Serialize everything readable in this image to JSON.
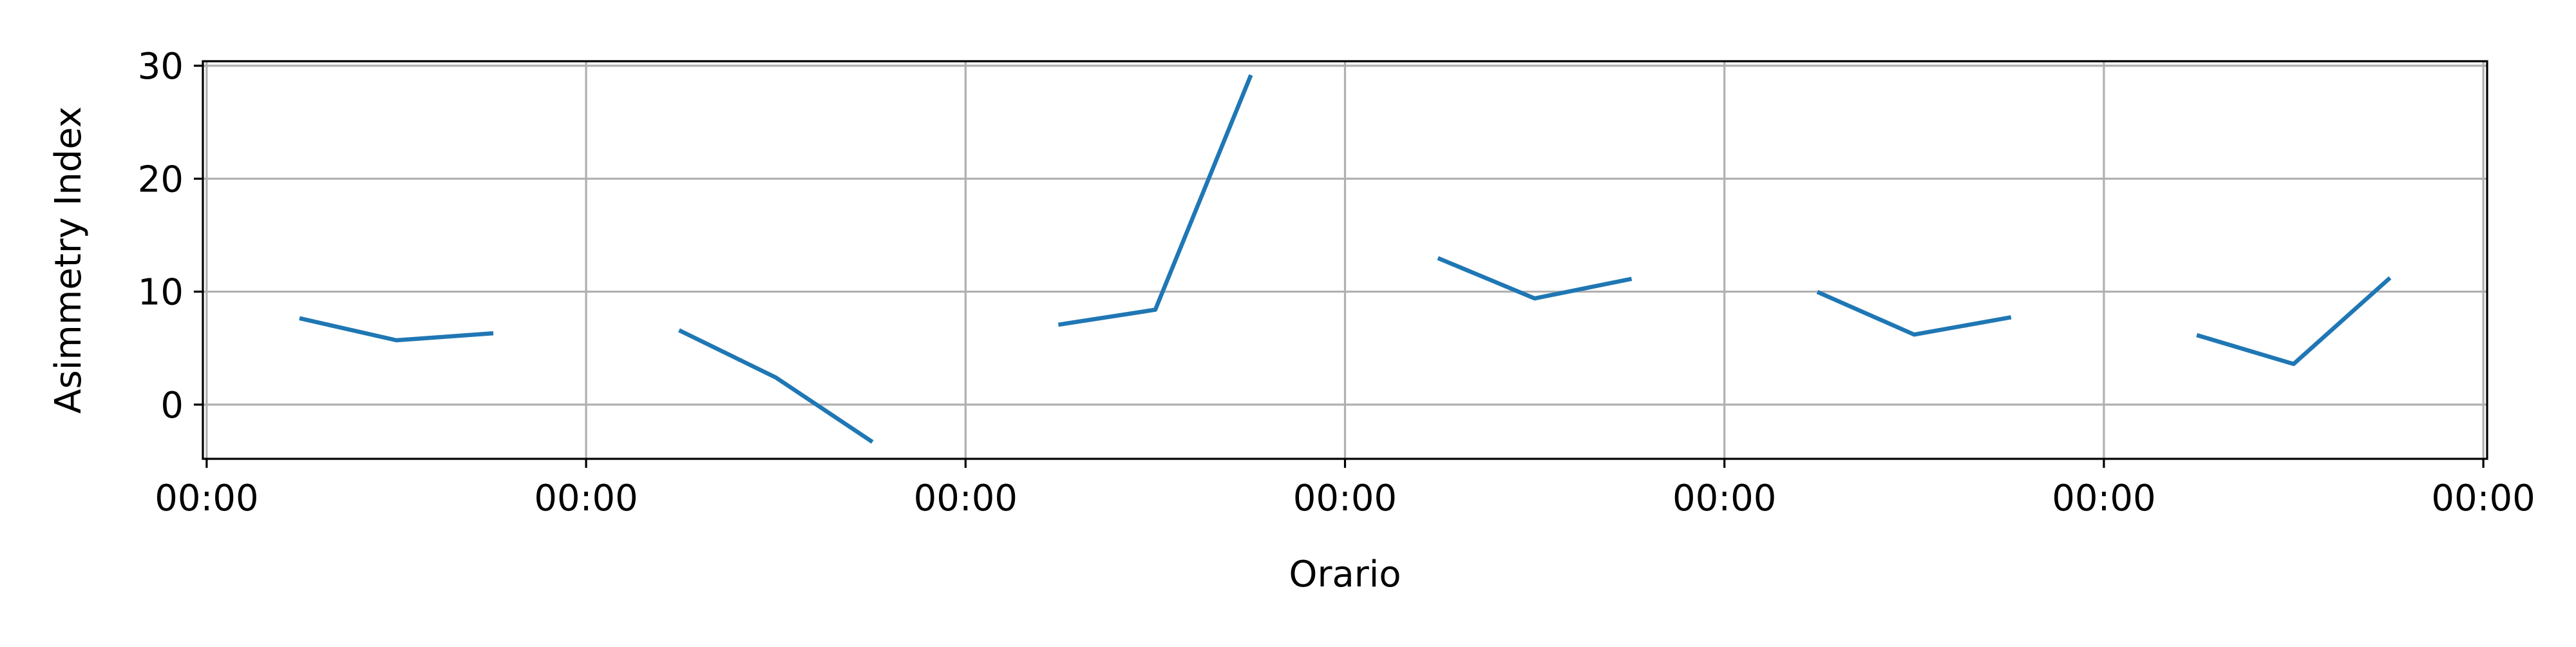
{
  "chart_data": {
    "type": "line",
    "title": "",
    "xlabel": "Orario",
    "ylabel": "Asimmetry Index",
    "x_tick_labels": [
      "00:00",
      "00:00",
      "00:00",
      "00:00",
      "00:00",
      "00:00",
      "00:00"
    ],
    "y_ticks": [
      0,
      10,
      20,
      30
    ],
    "ylim": [
      -4.8,
      30.4
    ],
    "xlim": [
      -0.01,
      6.01
    ],
    "grid": true,
    "legend": "none",
    "colors": {
      "line": "#1f77b4",
      "grid": "#b0b0b0",
      "axis": "#000000"
    },
    "series": [
      {
        "x": [
          0.25,
          0.5,
          0.75,
          1.25,
          1.5,
          1.75,
          2.25,
          2.5,
          2.75,
          3.25,
          3.5,
          3.75,
          4.25,
          4.5,
          4.75,
          5.25,
          5.5,
          5.75
        ],
        "values": [
          7.6,
          5.7,
          6.3,
          6.5,
          2.4,
          -3.2,
          7.1,
          8.4,
          29.0,
          12.9,
          9.4,
          11.1,
          9.9,
          6.2,
          7.7,
          6.1,
          3.6,
          11.1
        ],
        "segments": [
          [
            0,
            3
          ],
          [
            3,
            6
          ],
          [
            6,
            9
          ],
          [
            9,
            12
          ],
          [
            12,
            15
          ],
          [
            15,
            18
          ]
        ]
      }
    ]
  }
}
